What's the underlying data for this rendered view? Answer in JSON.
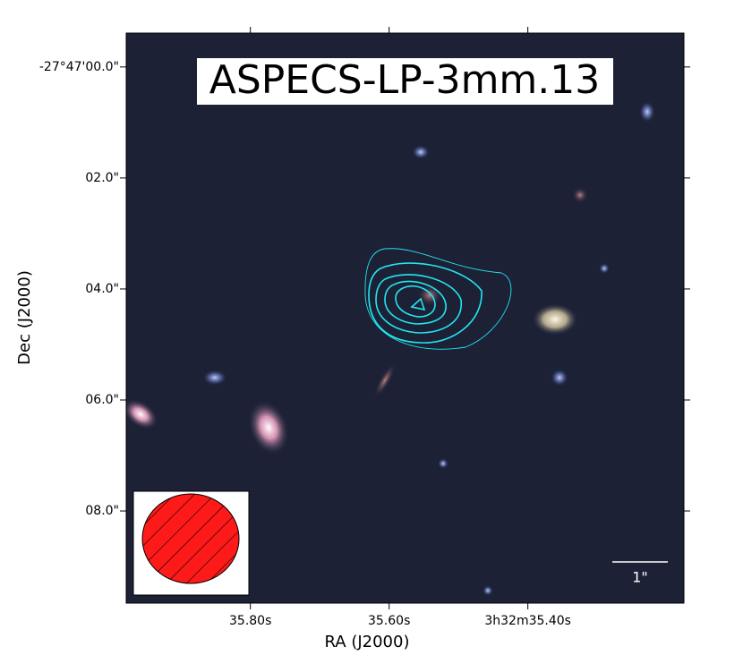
{
  "chart_data": {
    "type": "image",
    "title": "ASPECS-LP-3mm.13",
    "x_label": "RA (J2000)",
    "y_label": "Dec (J2000)",
    "xlim": [
      35.979,
      35.175
    ],
    "xticks": [
      {
        "value": 35.8,
        "label": "35.80s"
      },
      {
        "value": 35.6,
        "label": "35.60s"
      },
      {
        "value": 35.4,
        "label": "3h32m35.40s"
      }
    ],
    "ylim": [
      9.66,
      -0.61
    ],
    "yticks": [
      {
        "value": 0,
        "label": "-27°47'00.0\""
      },
      {
        "value": 2,
        "label": "02.0\""
      },
      {
        "value": 4,
        "label": "04.0\""
      },
      {
        "value": 6,
        "label": "06.0\""
      },
      {
        "value": 8,
        "label": "08.0\""
      }
    ],
    "scale_bar_label": "1\""
  }
}
